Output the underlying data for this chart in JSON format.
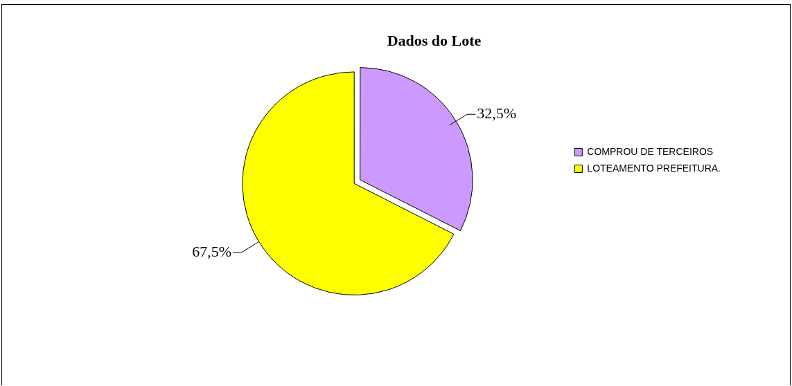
{
  "chart_data": {
    "type": "pie",
    "title": "Dados do Lote",
    "categories": [
      "COMPROU DE TERCEIROS",
      "LOTEAMENTO PREFEITURA."
    ],
    "values": [
      32.5,
      67.5
    ],
    "colors": [
      "#cc99ff",
      "#ffff00"
    ],
    "value_labels": [
      "32,5%",
      "67,5%"
    ],
    "legend": "right"
  }
}
